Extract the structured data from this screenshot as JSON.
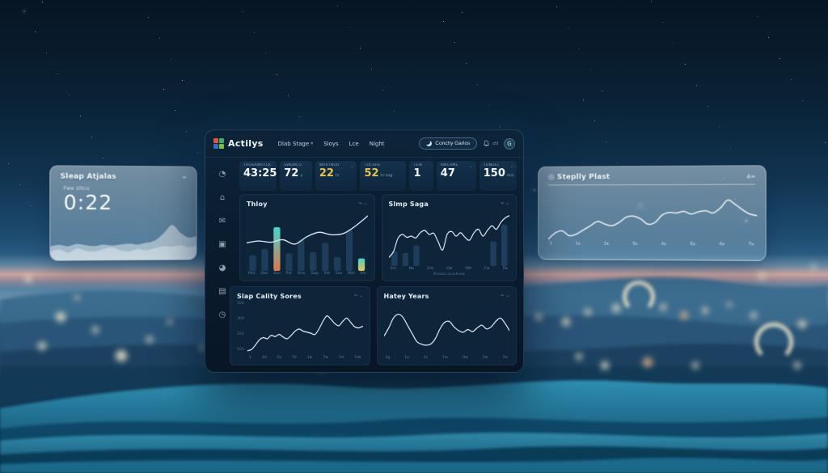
{
  "colors": {
    "accent_cyan": "#3fd6d0",
    "accent_orange": "#e0764e",
    "accent_yellow": "#e6c44e",
    "chart_line": "#d7e2ea",
    "chart_bar": "#1d3d5a",
    "dashboard_bg": "#0b1e32",
    "logo_squares": [
      "#e05a3a",
      "#3fae6a",
      "#2f6fc2",
      "#7bc143"
    ]
  },
  "header": {
    "logo_text": "Actilys",
    "nav_items": [
      {
        "label": "Dlab Stage",
        "chevron": true
      },
      {
        "label": "Sloys",
        "chevron": false
      },
      {
        "label": "Lce",
        "chevron": false
      },
      {
        "label": "Night",
        "chevron": false
      }
    ],
    "action_button_label": "Conchy Garlos",
    "bell_label": "ctl",
    "avatar_initial": "G"
  },
  "sidebar": {
    "icons": [
      {
        "name": "schedule-icon",
        "glyph": "◔"
      },
      {
        "name": "home-icon",
        "glyph": "⌂"
      },
      {
        "name": "messages-icon",
        "glyph": "✉"
      },
      {
        "name": "briefcase-icon",
        "glyph": "▣"
      },
      {
        "name": "pie-chart-icon",
        "glyph": "◕"
      },
      {
        "name": "calendar-icon",
        "glyph": "▤"
      },
      {
        "name": "history-icon",
        "glyph": "◷"
      }
    ]
  },
  "stats": [
    {
      "label": "Trosawhtck",
      "value": "43:25",
      "suffix": "",
      "accent": false,
      "chevron": false
    },
    {
      "label": "Swdrco",
      "value": "72",
      "suffix": "y",
      "accent": false,
      "chevron": false
    },
    {
      "label": "Wartnuo",
      "value": "22",
      "suffix": "hr",
      "accent": true,
      "chevron": true
    },
    {
      "label": "Tocshe",
      "value": "52",
      "suffix": "hr avg",
      "accent": true,
      "chevron": false
    },
    {
      "label": "Tew",
      "value": "1",
      "suffix": "",
      "accent": false,
      "chevron": false
    },
    {
      "label": "Awcame",
      "value": "47",
      "suffix": "",
      "accent": false,
      "chevron": true
    },
    {
      "label": "Tonucl",
      "value": "150",
      "suffix": "min",
      "accent": false,
      "chevron": true
    }
  ],
  "chart_data": [
    {
      "id": "sleep-analysis",
      "type": "area",
      "title": "Sleap Atjalas",
      "corner_label": "≈",
      "metric_label": "Fwe zitcu",
      "metric_value": "0:22",
      "ylim": [
        0,
        100
      ],
      "series": [
        {
          "name": "back",
          "values": [
            30,
            33,
            30,
            35,
            32,
            30,
            33,
            31,
            33,
            35,
            33,
            37,
            42,
            58,
            76,
            58,
            48,
            52
          ]
        },
        {
          "name": "front",
          "values": [
            18,
            23,
            16,
            25,
            20,
            18,
            23,
            27,
            20,
            18,
            23,
            20,
            25,
            29,
            28,
            31,
            26,
            31
          ]
        }
      ]
    },
    {
      "id": "sleep-trend",
      "type": "line",
      "title": "Steplly Plast",
      "corner_label": "A≈",
      "yticks": [
        "-",
        "-",
        "-"
      ],
      "xticks": [
        "1",
        "1a",
        "2a",
        "3a",
        "4a",
        "5a",
        "6a",
        "7a"
      ],
      "values": [
        4,
        16,
        20,
        11,
        14,
        22,
        30,
        38,
        33,
        30,
        36,
        46,
        48,
        43,
        33,
        36,
        50,
        55,
        54,
        57,
        52,
        56,
        58,
        54,
        63,
        78,
        70,
        60,
        52,
        49
      ],
      "ylim": [
        0,
        100
      ]
    },
    {
      "id": "today",
      "type": "bar-line",
      "title": "Thloy",
      "corner_label": "≈ ⌄",
      "categories": [
        "Mot",
        "Swe",
        "Sun",
        "Pot",
        "Smu",
        "Swp",
        "Set",
        "Sun",
        "Mot",
        "Pot"
      ],
      "bar_values": [
        25,
        35,
        70,
        28,
        50,
        30,
        45,
        22,
        65,
        20
      ],
      "line_values": [
        45,
        48,
        46,
        50,
        43,
        55,
        62,
        58,
        60,
        72,
        88
      ],
      "highlights": {
        "2": [
          "#3fd6d0",
          "#e0764e"
        ],
        "9": [
          "#3fd6d0",
          "#e6c44e"
        ]
      },
      "ylim": [
        0,
        100
      ]
    },
    {
      "id": "sleep-stages",
      "type": "line-bar",
      "title": "Slmp Saga",
      "corner_label": "≈ ⌄",
      "caption": "Prowas ocushrow",
      "xticks": [
        "1m",
        "Na",
        "2cb",
        "Ow",
        "OM",
        "Cw",
        "Pw"
      ],
      "bar_values": [
        26,
        23,
        36,
        0,
        0,
        0,
        0,
        0,
        0,
        43,
        72
      ],
      "values": [
        15,
        25,
        48,
        55,
        50,
        52,
        49,
        58,
        62,
        55,
        57,
        42,
        28,
        55,
        60,
        52,
        58,
        50,
        45,
        58,
        64,
        52,
        62,
        70,
        64,
        76,
        84,
        88
      ],
      "ylim": [
        0,
        100
      ]
    },
    {
      "id": "sleep-quality-scores",
      "type": "line",
      "title": "Slap Cality Sores",
      "corner_label": "≈ ⌄",
      "yticks": [
        "500",
        "300",
        "250",
        "200"
      ],
      "xticks": [
        "1",
        "4d",
        "Fa",
        "7d",
        "1w",
        "7w",
        "5d",
        "7da"
      ],
      "values": [
        8,
        10,
        18,
        28,
        32,
        30,
        36,
        34,
        38,
        33,
        30,
        36,
        44,
        48,
        44,
        42,
        40,
        38,
        48,
        62,
        72,
        66,
        58,
        54,
        62,
        68,
        60,
        52,
        50,
        53
      ],
      "ylim": [
        0,
        100
      ]
    },
    {
      "id": "hatey-years",
      "type": "line",
      "title": "Hatey Years",
      "corner_label": "≈ ⌄",
      "xticks": [
        "1g",
        "1a",
        "2c",
        "1w",
        "Ow",
        "2w",
        "7w"
      ],
      "values": [
        35,
        50,
        68,
        75,
        70,
        55,
        40,
        25,
        20,
        18,
        20,
        30,
        48,
        60,
        62,
        52,
        45,
        42,
        47,
        43,
        50,
        55,
        48,
        52,
        62,
        68,
        58,
        44
      ],
      "ylim": [
        0,
        100
      ]
    }
  ]
}
